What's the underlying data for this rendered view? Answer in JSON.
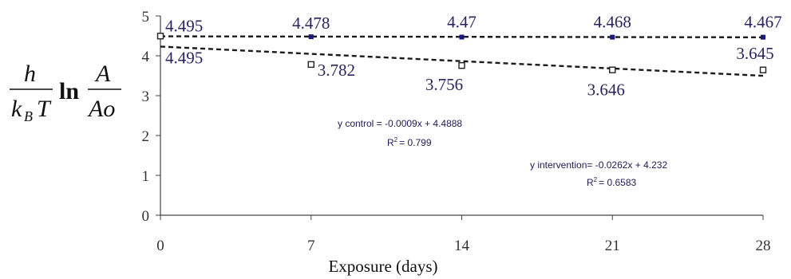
{
  "chart_data": {
    "type": "scatter",
    "title": "",
    "xlabel": "Exposure (days)",
    "ylabel": {
      "h": "h",
      "kB": "k",
      "B_sub": "B",
      "T": "T",
      "ln": "ln",
      "A": "A",
      "Ao": "Ao"
    },
    "x": [
      0,
      7,
      14,
      21,
      28
    ],
    "xticks": [
      "0",
      "7",
      "14",
      "21",
      "28"
    ],
    "yticks": [
      "0",
      "1",
      "2",
      "3",
      "4",
      "5"
    ],
    "xlim": [
      0,
      28
    ],
    "ylim": [
      0,
      5
    ],
    "grid": false,
    "series": [
      {
        "values": [
          4.495,
          4.478,
          4.47,
          4.468,
          4.467
        ],
        "labels": [
          "4.495",
          "4.478",
          "4.47",
          "4.468",
          "4.467"
        ],
        "color": "#1a1a7a",
        "marker": "square-filled",
        "trend": {
          "slope": -0.0009,
          "intercept": 4.4888
        },
        "equation": "y control = -0.0009x + 4.4888",
        "r2_prefix": "R",
        "r2_value": "= 0.799"
      },
      {
        "values": [
          4.495,
          3.782,
          3.756,
          3.646,
          3.645
        ],
        "labels": [
          "4.495",
          "3.782",
          "3.756",
          "3.646",
          "3.645"
        ],
        "color": "#222222",
        "marker": "square-open",
        "trend": {
          "slope": -0.0262,
          "intercept": 4.232
        },
        "equation": "y intervention= -0.0262x + 4.232",
        "r2_prefix": "R",
        "r2_value": "= 0.6583"
      }
    ],
    "r2_sup": "2"
  }
}
